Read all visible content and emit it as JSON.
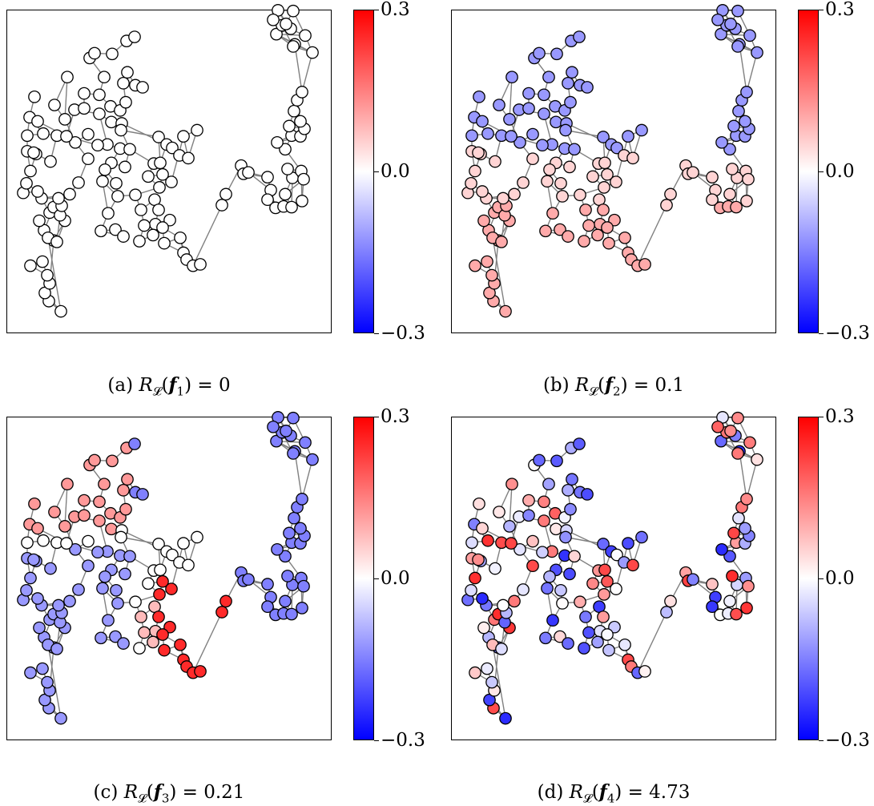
{
  "colorbar": {
    "max_label": "0.3",
    "mid_label": "0.0",
    "min_label": "−0.3",
    "vmin": -0.3,
    "vmax": 0.3,
    "colors": {
      "high": "#ff0000",
      "mid": "#ffffff",
      "low": "#0000ff"
    }
  },
  "panels": [
    {
      "letter": "(a)",
      "index": "1",
      "value": "0"
    },
    {
      "letter": "(b)",
      "index": "2",
      "value": "0.1"
    },
    {
      "letter": "(c)",
      "index": "3",
      "value": "0.21"
    },
    {
      "letter": "(d)",
      "index": "4",
      "value": "4.73"
    }
  ],
  "graph": {
    "nodes": [
      [
        62,
        -24
      ],
      [
        47,
        -39
      ],
      [
        42,
        -51
      ],
      [
        48,
        -65
      ],
      [
        45,
        -77
      ],
      [
        39,
        -97
      ],
      [
        24,
        -91
      ],
      [
        53,
        -128
      ],
      [
        41,
        -143
      ],
      [
        35,
        -157
      ],
      [
        67,
        -157
      ],
      [
        48,
        -169
      ],
      [
        38,
        -190
      ],
      [
        53,
        -177
      ],
      [
        73,
        -196
      ],
      [
        84,
        -213
      ],
      [
        96,
        -248
      ],
      [
        80,
        -272
      ],
      [
        96,
        -284
      ],
      [
        67,
        -306
      ],
      [
        70,
        -368
      ],
      [
        54,
        -327
      ],
      [
        46,
        -132
      ],
      [
        57,
        -126
      ],
      [
        61,
        -165
      ],
      [
        63,
        -179
      ],
      [
        59,
        -190
      ],
      [
        33,
        -200
      ],
      [
        15,
        -198
      ],
      [
        19,
        -212
      ],
      [
        24,
        -230
      ],
      [
        20,
        -259
      ],
      [
        31,
        -255
      ],
      [
        20,
        -282
      ],
      [
        23,
        -309
      ],
      [
        29,
        -339
      ],
      [
        40,
        -285
      ],
      [
        57,
        -282
      ],
      [
        49,
        -244
      ],
      [
        28,
        -257
      ],
      [
        33,
        -303
      ],
      [
        69,
        -281
      ],
      [
        79,
        -320
      ],
      [
        91,
        -322
      ],
      [
        91,
        -344
      ],
      [
        110,
        -342
      ],
      [
        116,
        -368
      ],
      [
        98,
        -396
      ],
      [
        104,
        -403
      ],
      [
        126,
        -402
      ],
      [
        144,
        -421
      ],
      [
        154,
        -427
      ],
      [
        110,
        -314
      ],
      [
        125,
        -302
      ],
      [
        138,
        -300
      ],
      [
        124,
        -325
      ],
      [
        136,
        -319
      ],
      [
        143,
        -331
      ],
      [
        140,
        -359
      ],
      [
        145,
        -375
      ],
      [
        155,
        -356
      ],
      [
        164,
        -353
      ],
      [
        120,
        -269
      ],
      [
        136,
        -263
      ],
      [
        125,
        -242
      ],
      [
        142,
        -236
      ],
      [
        148,
        -262
      ],
      [
        137,
        -290
      ],
      [
        108,
        -268
      ],
      [
        117,
        -232
      ],
      [
        131,
        -212
      ],
      [
        133,
        -193
      ],
      [
        114,
        -215
      ],
      [
        121,
        -168
      ],
      [
        112,
        -142
      ],
      [
        130,
        -144
      ],
      [
        140,
        -134
      ],
      [
        155,
        -195
      ],
      [
        162,
        -173
      ],
      [
        179,
        -188
      ],
      [
        184,
        -173
      ],
      [
        180,
        -152
      ],
      [
        166,
        -150
      ],
      [
        177,
        -136
      ],
      [
        160,
        -127
      ],
      [
        198,
        -158
      ],
      [
        189,
        -147
      ],
      [
        191,
        -124
      ],
      [
        211,
        -132
      ],
      [
        215,
        -110
      ],
      [
        219,
        -100
      ],
      [
        227,
        -91
      ],
      [
        236,
        -93
      ],
      [
        185,
        -206
      ],
      [
        171,
        -222
      ],
      [
        178,
        -241
      ],
      [
        186,
        -242
      ],
      [
        184,
        -280
      ],
      [
        194,
        -269
      ],
      [
        201,
        -264
      ],
      [
        210,
        -253
      ],
      [
        221,
        -249
      ],
      [
        215,
        -281
      ],
      [
        232,
        -290
      ],
      [
        200,
        -214
      ],
      [
        189,
        -225
      ],
      [
        263,
        -180
      ],
      [
        268,
        -196
      ],
      [
        287,
        -238
      ],
      [
        290,
        -226
      ],
      [
        296,
        -228
      ],
      [
        320,
        -221
      ],
      [
        324,
        -202
      ],
      [
        320,
        -188
      ],
      [
        330,
        -176
      ],
      [
        340,
        -178
      ],
      [
        342,
        -196
      ],
      [
        350,
        -177
      ],
      [
        351,
        -220
      ],
      [
        345,
        -233
      ],
      [
        362,
        -230
      ],
      [
        365,
        -218
      ],
      [
        363,
        -186
      ],
      [
        342,
        -262
      ],
      [
        332,
        -272
      ],
      [
        350,
        -282
      ],
      [
        361,
        -281
      ],
      [
        366,
        -292
      ],
      [
        347,
        -296
      ],
      [
        361,
        -303
      ],
      [
        353,
        -318
      ],
      [
        357,
        -334
      ],
      [
        363,
        -346
      ],
      [
        354,
        -416
      ],
      [
        376,
        -404
      ],
      [
        352,
        -413
      ],
      [
        331,
        -431
      ],
      [
        367,
        -429
      ],
      [
        338,
        -444
      ],
      [
        349,
        -439
      ],
      [
        333,
        -466
      ],
      [
        352,
        -465
      ],
      [
        343,
        -446
      ],
      [
        327,
        -452
      ]
    ],
    "edges": [
      [
        0,
        1
      ],
      [
        0,
        2
      ],
      [
        1,
        2
      ],
      [
        1,
        3
      ],
      [
        2,
        3
      ],
      [
        3,
        4
      ],
      [
        4,
        5
      ],
      [
        4,
        6
      ],
      [
        5,
        6
      ],
      [
        3,
        7
      ],
      [
        7,
        8
      ],
      [
        8,
        9
      ],
      [
        7,
        10
      ],
      [
        8,
        13
      ],
      [
        10,
        13
      ],
      [
        13,
        11
      ],
      [
        11,
        12
      ],
      [
        12,
        14
      ],
      [
        13,
        14
      ],
      [
        14,
        15
      ],
      [
        15,
        16
      ],
      [
        16,
        17
      ],
      [
        17,
        18
      ],
      [
        17,
        19
      ],
      [
        19,
        20
      ],
      [
        19,
        21
      ],
      [
        20,
        21
      ],
      [
        0,
        22
      ],
      [
        22,
        23
      ],
      [
        23,
        7
      ],
      [
        22,
        8
      ],
      [
        23,
        10
      ],
      [
        24,
        23
      ],
      [
        24,
        10
      ],
      [
        24,
        25
      ],
      [
        25,
        26
      ],
      [
        26,
        12
      ],
      [
        27,
        12
      ],
      [
        27,
        28
      ],
      [
        28,
        29
      ],
      [
        27,
        29
      ],
      [
        29,
        30
      ],
      [
        30,
        31
      ],
      [
        30,
        32
      ],
      [
        31,
        32
      ],
      [
        31,
        33
      ],
      [
        33,
        34
      ],
      [
        34,
        35
      ],
      [
        33,
        36
      ],
      [
        34,
        36
      ],
      [
        36,
        37
      ],
      [
        37,
        38
      ],
      [
        38,
        32
      ],
      [
        39,
        31
      ],
      [
        39,
        38
      ],
      [
        40,
        34
      ],
      [
        40,
        41
      ],
      [
        41,
        37
      ],
      [
        41,
        42
      ],
      [
        42,
        43
      ],
      [
        43,
        44
      ],
      [
        44,
        45
      ],
      [
        45,
        46
      ],
      [
        46,
        47
      ],
      [
        47,
        48
      ],
      [
        48,
        49
      ],
      [
        49,
        50
      ],
      [
        50,
        51
      ],
      [
        42,
        52
      ],
      [
        52,
        53
      ],
      [
        53,
        54
      ],
      [
        45,
        55
      ],
      [
        55,
        56
      ],
      [
        56,
        57
      ],
      [
        57,
        58
      ],
      [
        58,
        59
      ],
      [
        59,
        60
      ],
      [
        60,
        61
      ],
      [
        58,
        61
      ],
      [
        52,
        62
      ],
      [
        62,
        63
      ],
      [
        63,
        64
      ],
      [
        64,
        65
      ],
      [
        65,
        66
      ],
      [
        66,
        67
      ],
      [
        62,
        68
      ],
      [
        68,
        41
      ],
      [
        64,
        69
      ],
      [
        69,
        70
      ],
      [
        70,
        71
      ],
      [
        71,
        72
      ],
      [
        69,
        72
      ],
      [
        72,
        73
      ],
      [
        73,
        74
      ],
      [
        74,
        75
      ],
      [
        75,
        76
      ],
      [
        74,
        76
      ],
      [
        71,
        73
      ],
      [
        71,
        77
      ],
      [
        77,
        78
      ],
      [
        78,
        79
      ],
      [
        79,
        80
      ],
      [
        80,
        81
      ],
      [
        81,
        82
      ],
      [
        82,
        78
      ],
      [
        81,
        83
      ],
      [
        83,
        84
      ],
      [
        84,
        82
      ],
      [
        82,
        85
      ],
      [
        85,
        86
      ],
      [
        86,
        87
      ],
      [
        87,
        88
      ],
      [
        88,
        89
      ],
      [
        89,
        90
      ],
      [
        90,
        91
      ],
      [
        91,
        92
      ],
      [
        87,
        89
      ],
      [
        88,
        90
      ],
      [
        86,
        88
      ],
      [
        77,
        93
      ],
      [
        93,
        94
      ],
      [
        94,
        95
      ],
      [
        95,
        96
      ],
      [
        96,
        97
      ],
      [
        97,
        98
      ],
      [
        98,
        99
      ],
      [
        99,
        100
      ],
      [
        100,
        101
      ],
      [
        101,
        102
      ],
      [
        102,
        103
      ],
      [
        103,
        101
      ],
      [
        96,
        98
      ],
      [
        104,
        93
      ],
      [
        105,
        94
      ],
      [
        104,
        105
      ],
      [
        93,
        105
      ],
      [
        97,
        99
      ],
      [
        98,
        100
      ],
      [
        102,
        104
      ],
      [
        67,
        97
      ],
      [
        66,
        95
      ],
      [
        54,
        98
      ],
      [
        91,
        106
      ],
      [
        106,
        107
      ],
      [
        107,
        108
      ],
      [
        108,
        109
      ],
      [
        109,
        110
      ],
      [
        110,
        111
      ],
      [
        111,
        112
      ],
      [
        112,
        113
      ],
      [
        113,
        114
      ],
      [
        114,
        115
      ],
      [
        115,
        116
      ],
      [
        116,
        117
      ],
      [
        117,
        118
      ],
      [
        118,
        119
      ],
      [
        119,
        120
      ],
      [
        120,
        121
      ],
      [
        121,
        122
      ],
      [
        108,
        110
      ],
      [
        110,
        112
      ],
      [
        112,
        114
      ],
      [
        116,
        118
      ],
      [
        113,
        117
      ],
      [
        118,
        121
      ],
      [
        119,
        121
      ],
      [
        120,
        122
      ],
      [
        116,
        121
      ],
      [
        117,
        122
      ],
      [
        115,
        117
      ],
      [
        109,
        111
      ],
      [
        120,
        123
      ],
      [
        123,
        124
      ],
      [
        124,
        125
      ],
      [
        125,
        126
      ],
      [
        126,
        127
      ],
      [
        127,
        128
      ],
      [
        128,
        129
      ],
      [
        129,
        130
      ],
      [
        130,
        131
      ],
      [
        131,
        132
      ],
      [
        123,
        125
      ],
      [
        124,
        126
      ],
      [
        126,
        128
      ],
      [
        127,
        129
      ],
      [
        125,
        128
      ],
      [
        124,
        127
      ],
      [
        129,
        131
      ],
      [
        128,
        130
      ],
      [
        132,
        133
      ],
      [
        133,
        134
      ],
      [
        134,
        135
      ],
      [
        135,
        136
      ],
      [
        136,
        137
      ],
      [
        137,
        138
      ],
      [
        138,
        139
      ],
      [
        139,
        140
      ],
      [
        140,
        141
      ],
      [
        141,
        142
      ],
      [
        142,
        143
      ],
      [
        133,
        136
      ],
      [
        134,
        137
      ],
      [
        135,
        138
      ],
      [
        136,
        139
      ],
      [
        137,
        141
      ],
      [
        138,
        142
      ],
      [
        139,
        143
      ],
      [
        140,
        142
      ],
      [
        133,
        135
      ],
      [
        134,
        136
      ],
      [
        132,
        134
      ]
    ]
  }
}
